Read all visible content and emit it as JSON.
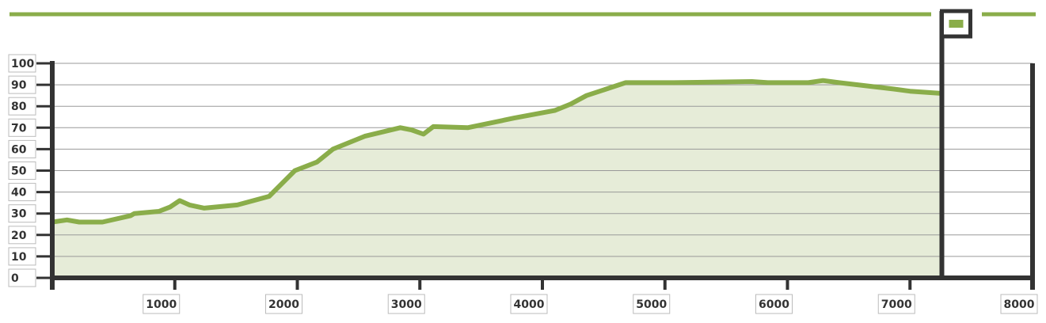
{
  "chart_data": {
    "type": "area",
    "x": [
      0,
      120,
      220,
      410,
      640,
      670,
      870,
      960,
      1040,
      1120,
      1240,
      1510,
      1770,
      1980,
      2160,
      2290,
      2550,
      2840,
      2930,
      3030,
      3110,
      3390,
      3770,
      4100,
      4230,
      4360,
      4680,
      5070,
      5710,
      5840,
      6170,
      6290,
      6420,
      6870,
      7000,
      7250
    ],
    "values": [
      26,
      27,
      26,
      26,
      29,
      30,
      31,
      33,
      36,
      34,
      32.5,
      34,
      38,
      50,
      54,
      60,
      66,
      70,
      69,
      67,
      70.5,
      70,
      74.5,
      78,
      81,
      85,
      91,
      91,
      91.5,
      91,
      91,
      92,
      91,
      88,
      87,
      86
    ],
    "color": "#8aad4a",
    "xlim": [
      0,
      8000
    ],
    "xticks": [
      1000,
      2000,
      3000,
      4000,
      5000,
      6000,
      7000,
      8000
    ],
    "ylim": [
      0,
      100
    ],
    "yticks": [
      0,
      10,
      20,
      30,
      40,
      50,
      60,
      70,
      80,
      90,
      100
    ],
    "grid": true,
    "marker_x": 7260
  }
}
